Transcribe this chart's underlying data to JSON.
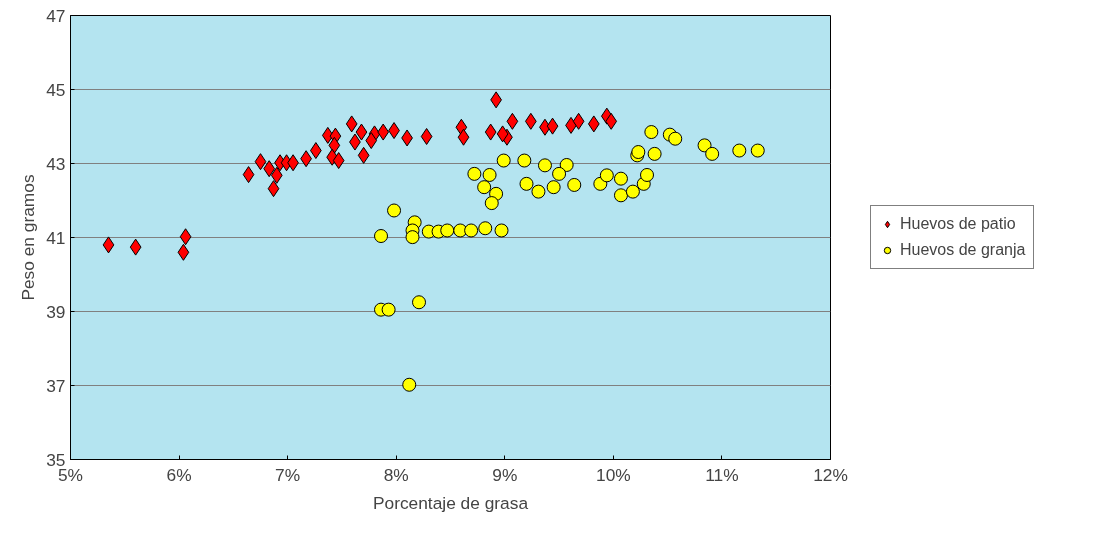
{
  "chart_data": {
    "type": "scatter",
    "xlabel": "Porcentaje de grasa",
    "ylabel": "Peso en gramos",
    "xlim": [
      5,
      12
    ],
    "ylim": [
      35,
      47
    ],
    "xticks": [
      {
        "value": 5,
        "label": "5%"
      },
      {
        "value": 6,
        "label": "6%"
      },
      {
        "value": 7,
        "label": "7%"
      },
      {
        "value": 8,
        "label": "8%"
      },
      {
        "value": 9,
        "label": "9%"
      },
      {
        "value": 10,
        "label": "10%"
      },
      {
        "value": 11,
        "label": "11%"
      },
      {
        "value": 12,
        "label": "12%"
      }
    ],
    "yticks": [
      35,
      37,
      39,
      41,
      43,
      45,
      47
    ],
    "grid": "y",
    "legend": "right",
    "series": [
      {
        "name": "Huevos de patio",
        "color": "#ff0000",
        "marker": "diamond",
        "x": [
          5.35,
          5.6,
          6.06,
          6.04,
          6.64,
          6.75,
          6.87,
          6.9,
          6.83,
          6.93,
          6.99,
          7.05,
          7.17,
          7.26,
          7.37,
          7.44,
          7.43,
          7.41,
          7.47,
          7.59,
          7.68,
          7.62,
          7.7,
          7.8,
          7.77,
          7.88,
          7.98,
          8.1,
          8.28,
          8.92,
          8.6,
          8.62,
          8.87,
          9.02,
          8.98,
          9.07,
          9.24,
          9.37,
          9.44,
          9.61,
          9.68,
          9.82,
          9.94,
          9.98
        ],
        "values": [
          40.8,
          40.74,
          41.02,
          40.6,
          42.7,
          43.05,
          42.32,
          42.68,
          42.86,
          43.02,
          43.02,
          43.02,
          43.13,
          43.35,
          43.76,
          43.74,
          43.49,
          43.17,
          43.08,
          44.07,
          43.85,
          43.58,
          43.22,
          43.8,
          43.62,
          43.85,
          43.89,
          43.69,
          43.73,
          44.72,
          43.98,
          43.71,
          43.85,
          43.71,
          43.8,
          44.14,
          44.14,
          43.98,
          44.01,
          44.03,
          44.14,
          44.07,
          44.28,
          44.14
        ]
      },
      {
        "name": "Huevos de granja",
        "color": "#ffff00",
        "marker": "circle",
        "x": [
          8.99,
          9.18,
          9.37,
          9.57,
          8.72,
          8.86,
          8.81,
          8.92,
          8.88,
          9.2,
          9.31,
          9.45,
          9.5,
          9.64,
          9.88,
          9.94,
          10.07,
          10.07,
          10.18,
          10.28,
          10.31,
          10.22,
          10.23,
          10.38,
          10.35,
          10.52,
          10.57,
          10.84,
          10.91,
          11.16,
          11.33,
          7.98,
          7.86,
          8.17,
          8.15,
          8.15,
          8.3,
          8.39,
          8.47,
          8.59,
          8.69,
          8.82,
          8.97,
          7.86,
          7.93,
          8.21,
          8.12
        ],
        "values": [
          43.08,
          43.08,
          42.95,
          42.96,
          42.72,
          42.69,
          42.36,
          42.18,
          41.93,
          42.45,
          42.24,
          42.36,
          42.72,
          42.42,
          42.45,
          42.68,
          42.59,
          42.14,
          42.24,
          42.45,
          42.69,
          43.22,
          43.31,
          43.26,
          43.85,
          43.78,
          43.67,
          43.49,
          43.26,
          43.35,
          43.35,
          41.73,
          41.04,
          41.41,
          41.19,
          41.01,
          41.16,
          41.16,
          41.19,
          41.19,
          41.19,
          41.25,
          41.19,
          39.05,
          39.05,
          39.25,
          37.02
        ]
      }
    ]
  }
}
